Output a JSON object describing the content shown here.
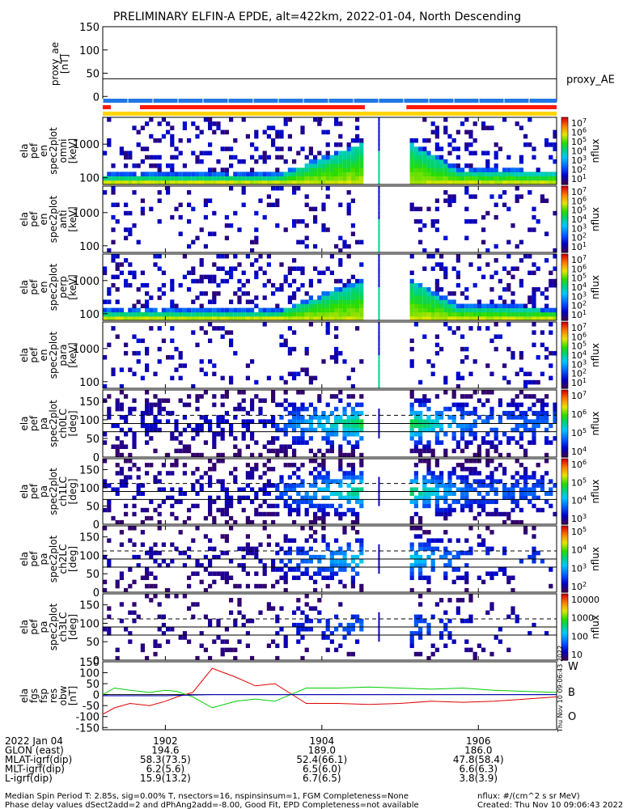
{
  "title": "PRELIMINARY ELFIN-A EPDE, alt=422km, 2022-01-04, North Descending",
  "colors": {
    "bar_blue": "#1f77e6",
    "bar_red": "#ff1a0a",
    "bar_yellow": "#ffd400",
    "line_red": "#e00000",
    "line_green": "#00cc00",
    "line_blue": "#0000cc"
  },
  "chart_data": [
    {
      "type": "line",
      "panel": "proxy_ae",
      "ylabel": [
        "proxy_ae",
        "[nT]"
      ],
      "legend": "proxy_AE",
      "ylim": [
        -10,
        150
      ],
      "yticks": [
        "150",
        "100",
        "50",
        "0"
      ],
      "series": [
        {
          "name": "proxy_AE",
          "x": [
            1901.2,
            1907.0
          ],
          "y": [
            38,
            38
          ]
        }
      ]
    },
    {
      "type": "heatmap",
      "panel": "pef_en_spec2plot_omni",
      "ylabel": [
        "ela",
        "pef",
        "en",
        "spec2plot",
        "omni",
        "[keV]"
      ],
      "yscale": "log",
      "yticks": [
        "1000",
        "100"
      ],
      "colorbar": {
        "label": "nflux",
        "ticks": [
          "10^7",
          "10^6",
          "10^5",
          "10^4",
          "10^3",
          "10^2",
          "10^1"
        ]
      }
    },
    {
      "type": "heatmap",
      "panel": "pef_en_spec2plot_anti",
      "ylabel": [
        "ela",
        "pef",
        "en",
        "spec2plot",
        "anti",
        "[keV]"
      ],
      "yscale": "log",
      "yticks": [
        "1000",
        "100"
      ],
      "colorbar": {
        "label": "nflux",
        "ticks": [
          "10^7",
          "10^6",
          "10^5",
          "10^4",
          "10^3",
          "10^2",
          "10^1"
        ]
      }
    },
    {
      "type": "heatmap",
      "panel": "pef_en_spec2plot_perp",
      "ylabel": [
        "ela",
        "pef",
        "en",
        "spec2plot",
        "perp",
        "[keV]"
      ],
      "yscale": "log",
      "yticks": [
        "1000",
        "100"
      ],
      "colorbar": {
        "label": "nflux",
        "ticks": [
          "10^7",
          "10^6",
          "10^5",
          "10^4",
          "10^3",
          "10^2",
          "10^1"
        ]
      }
    },
    {
      "type": "heatmap",
      "panel": "pef_en_spec2plot_para",
      "ylabel": [
        "ela",
        "pef",
        "en",
        "spec2plot",
        "para",
        "[keV]"
      ],
      "yscale": "log",
      "yticks": [
        "1000",
        "100"
      ],
      "colorbar": {
        "label": "nflux",
        "ticks": [
          "10^7",
          "10^6",
          "10^5",
          "10^4",
          "10^3",
          "10^2",
          "10^1"
        ]
      }
    },
    {
      "type": "heatmap",
      "panel": "pef_pa_spec2plot_ch0LC",
      "ylabel": [
        "ela",
        "pef",
        "pa",
        "spec2plot",
        "ch0LC",
        "[deg]"
      ],
      "ylim": [
        0,
        180
      ],
      "yticks": [
        "150",
        "100",
        "50",
        "0"
      ],
      "colorbar": {
        "label": "nflux",
        "ticks": [
          "10^7",
          "10^6",
          "10^5",
          "10^4"
        ]
      }
    },
    {
      "type": "heatmap",
      "panel": "pef_pa_spec2plot_ch1LC",
      "ylabel": [
        "ela",
        "pef",
        "pa",
        "spec2plot",
        "ch1LC",
        "[deg]"
      ],
      "ylim": [
        0,
        180
      ],
      "yticks": [
        "150",
        "100",
        "50",
        "0"
      ],
      "colorbar": {
        "label": "nflux",
        "ticks": [
          "10^6",
          "10^5",
          "10^4",
          "10^3"
        ]
      }
    },
    {
      "type": "heatmap",
      "panel": "pef_pa_spec2plot_ch2LC",
      "ylabel": [
        "ela",
        "pef",
        "pa",
        "spec2plot",
        "ch2LC",
        "[deg]"
      ],
      "ylim": [
        0,
        180
      ],
      "yticks": [
        "150",
        "100",
        "50",
        "0"
      ],
      "colorbar": {
        "label": "nflux",
        "ticks": [
          "10^5",
          "10^4",
          "10^3",
          "10^2"
        ]
      }
    },
    {
      "type": "heatmap",
      "panel": "pef_pa_spec2plot_ch3LC",
      "ylabel": [
        "ela",
        "pef",
        "pa",
        "spec2plot",
        "ch3LC",
        "[deg]"
      ],
      "ylim": [
        0,
        180
      ],
      "yticks": [
        "150",
        "100",
        "50",
        "0"
      ],
      "colorbar": {
        "label": "nflux",
        "ticks": [
          "10000",
          "1000",
          "100",
          "10"
        ]
      }
    },
    {
      "type": "line",
      "panel": "fgs_fsp_res_obw",
      "ylabel": [
        "ela",
        "fgs",
        "fsp",
        "res",
        "obw",
        "[nT]"
      ],
      "ylim": [
        -160,
        150
      ],
      "yticks": [
        "150",
        "100",
        "50",
        "0",
        "-50",
        "-100",
        "-150"
      ],
      "legend": [
        "W",
        "B",
        "O"
      ],
      "series": [
        {
          "name": "W",
          "x": [
            1901.2,
            1901.35,
            1901.55,
            1901.8,
            1902.0,
            1902.15,
            1902.35,
            1902.6,
            1902.9,
            1903.15,
            1903.4,
            1903.8,
            1904.2,
            1904.6,
            1905.0,
            1905.4,
            1905.8,
            1906.2,
            1906.6,
            1907.0
          ],
          "y": [
            -90,
            -60,
            -40,
            -50,
            -30,
            -10,
            10,
            120,
            80,
            40,
            50,
            -40,
            -40,
            -45,
            -40,
            -30,
            -35,
            -30,
            -20,
            -10
          ]
        },
        {
          "name": "B",
          "x": [
            1901.2,
            1901.35,
            1901.55,
            1901.8,
            1902.0,
            1902.15,
            1902.35,
            1902.6,
            1902.9,
            1903.15,
            1903.4,
            1903.8,
            1904.2,
            1904.6,
            1905.0,
            1905.4,
            1905.8,
            1906.2,
            1906.6,
            1907.0
          ],
          "y": [
            0,
            30,
            20,
            10,
            20,
            15,
            -10,
            -60,
            -30,
            -20,
            -30,
            30,
            30,
            35,
            30,
            25,
            30,
            20,
            15,
            10
          ]
        },
        {
          "name": "O",
          "x": [
            1901.2,
            1902.0,
            1902.6,
            1903.4,
            1904.2,
            1905.0,
            1906.0,
            1907.0
          ],
          "y": [
            -5,
            -5,
            0,
            0,
            0,
            0,
            0,
            0
          ]
        }
      ]
    }
  ],
  "x_axis": {
    "ticks": [
      "1902",
      "1904",
      "1906"
    ],
    "xlim": [
      1901.2,
      1907.0
    ]
  },
  "ephemeris": {
    "rows": [
      {
        "label": "2022 Jan 04",
        "values": [
          "",
          "",
          ""
        ]
      },
      {
        "label": "GLON (east)",
        "values": [
          "194.6",
          "189.0",
          "186.0"
        ]
      },
      {
        "label": "MLAT-igrf(dip)",
        "values": [
          "58.3(73.5)",
          "52.4(66.1)",
          "47.8(58.4)"
        ]
      },
      {
        "label": "MLT-igrf(dip)",
        "values": [
          "6.2(5.6)",
          "6.5(6.0)",
          "6.6(6.3)"
        ]
      },
      {
        "label": "L-igrf(dip)",
        "values": [
          "15.9(13.2)",
          "6.7(6.5)",
          "3.8(3.9)"
        ]
      }
    ]
  },
  "footer": {
    "line1": "Median Spin Period T: 2.85s, sig=0.00% T, nsectors=16, nspinsinsum=1, FGM Completeness=None",
    "line2": "Phase delay values dSect2add=2 and dPhAng2add=-8.00, Good Fit, EPD Completeness=not available",
    "units": "nflux: #/(cm^2 s sr MeV)",
    "created": "Created: Thu Nov 10 09:06:43 2022",
    "vertical": "Thu Nov 10 09:06:43 2022"
  }
}
